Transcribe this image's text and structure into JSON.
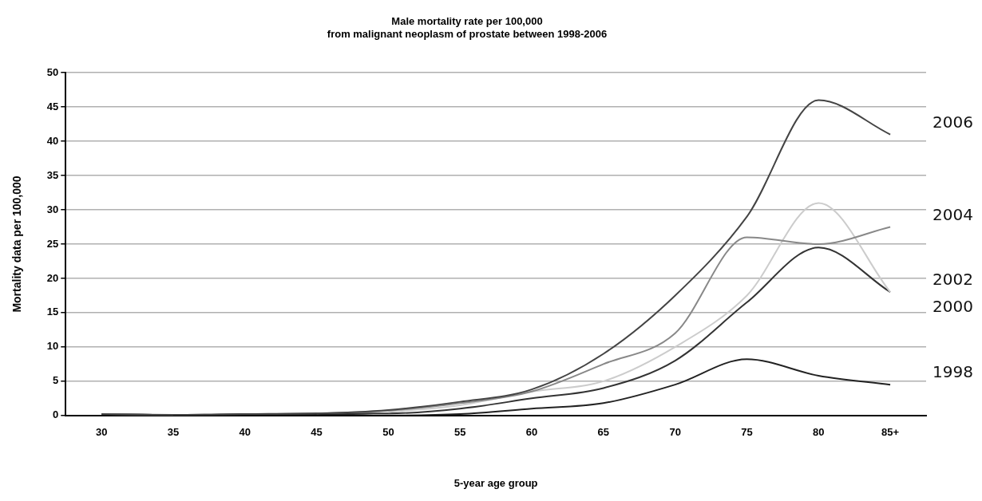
{
  "chart_data": {
    "type": "line",
    "title": "Male mortality rate per 100,000\nfrom malignant neoplasm of prostate between 1998-2006",
    "xlabel": "5-year age group",
    "ylabel": "Mortality data per 100,000",
    "categories": [
      "30",
      "35",
      "40",
      "45",
      "50",
      "55",
      "60",
      "65",
      "70",
      "75",
      "80",
      "85+"
    ],
    "ylim": [
      0,
      50
    ],
    "yticks": [
      0,
      5,
      10,
      15,
      20,
      25,
      30,
      35,
      40,
      45,
      50
    ],
    "grid": "y",
    "legend": false,
    "marker": "none",
    "series": [
      {
        "name": "2006",
        "color": "#444444",
        "values": [
          0.2,
          0.1,
          0.2,
          0.3,
          0.8,
          2,
          3.8,
          9,
          17.5,
          29,
          46,
          41
        ]
      },
      {
        "name": "2004",
        "color": "#888888",
        "values": [
          0.2,
          0.1,
          null,
          0.3,
          0.7,
          1.8,
          3.5,
          7.5,
          12,
          26,
          25,
          27.5
        ]
      },
      {
        "name": "2002",
        "color": "#cccccc",
        "values": [
          null,
          null,
          null,
          null,
          0.5,
          1.5,
          3.5,
          5,
          10,
          17.5,
          31,
          18
        ]
      },
      {
        "name": "2000",
        "color": "#333333",
        "values": [
          0.2,
          0.1,
          0.2,
          0.3,
          0.3,
          1,
          2.5,
          4,
          8,
          16.5,
          24.5,
          18
        ]
      },
      {
        "name": "1998",
        "color": "#222222",
        "values": [
          0.2,
          0.1,
          0.1,
          0.2,
          0,
          0.2,
          1,
          1.8,
          4.5,
          8.2,
          5.8,
          4.5
        ]
      }
    ]
  }
}
